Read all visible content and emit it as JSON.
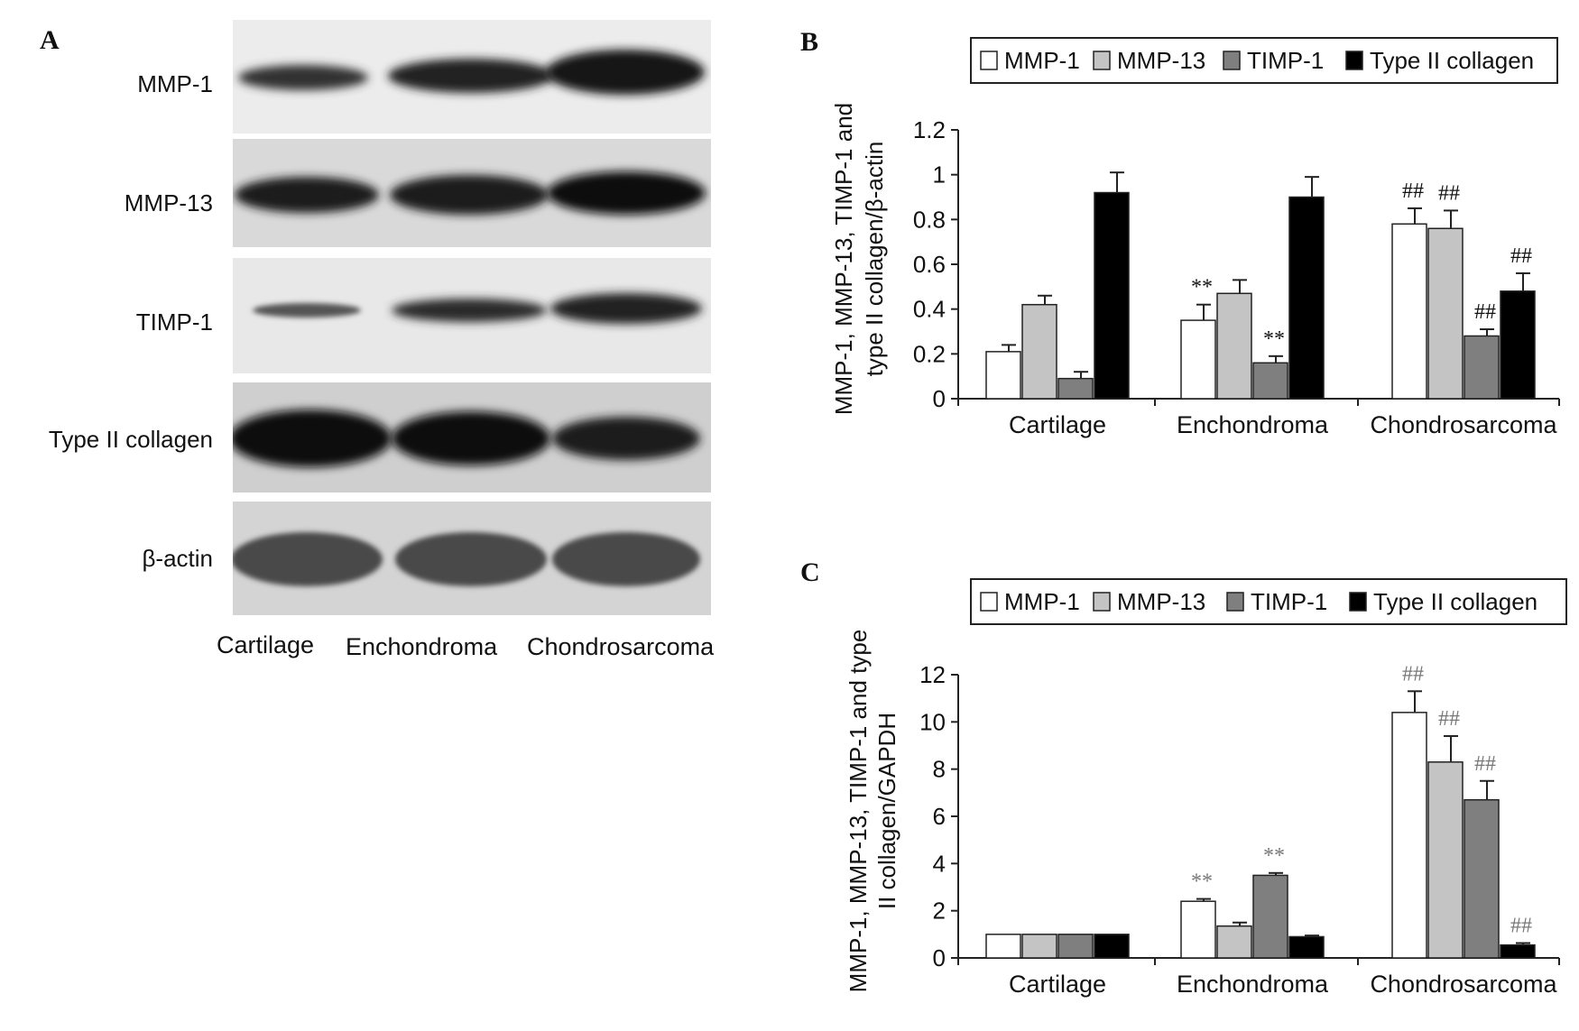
{
  "panels": {
    "a": "A",
    "b": "B",
    "c": "C"
  },
  "blot": {
    "rows": [
      "MMP-1",
      "MMP-13",
      "TIMP-1",
      "Type II collagen",
      "β-actin"
    ],
    "lanes": [
      "Cartilage",
      "Enchondroma",
      "Chondrosarcoma"
    ]
  },
  "colors": {
    "MMP-1": "#ffffff",
    "MMP-13": "#c4c4c4",
    "TIMP-1": "#7f7f7f",
    "Type II collagen": "#000000"
  },
  "chart_data": [
    {
      "type": "bar",
      "panel": "B",
      "categories": [
        "Cartilage",
        "Enchondroma",
        "Chondrosarcoma"
      ],
      "series": [
        {
          "name": "MMP-1",
          "values": [
            0.21,
            0.35,
            0.78
          ],
          "errors": [
            0.03,
            0.07,
            0.07
          ]
        },
        {
          "name": "MMP-13",
          "values": [
            0.42,
            0.47,
            0.76
          ],
          "errors": [
            0.04,
            0.06,
            0.08
          ]
        },
        {
          "name": "TIMP-1",
          "values": [
            0.09,
            0.16,
            0.28
          ],
          "errors": [
            0.03,
            0.03,
            0.03
          ]
        },
        {
          "name": "Type II collagen",
          "values": [
            0.92,
            0.9,
            0.48
          ],
          "errors": [
            0.09,
            0.09,
            0.08
          ]
        }
      ],
      "annotations": [
        {
          "category": "Enchondroma",
          "series": "MMP-1",
          "text": "**"
        },
        {
          "category": "Enchondroma",
          "series": "TIMP-1",
          "text": "**"
        },
        {
          "category": "Chondrosarcoma",
          "series": "MMP-1",
          "text": "##"
        },
        {
          "category": "Chondrosarcoma",
          "series": "MMP-13",
          "text": "##"
        },
        {
          "category": "Chondrosarcoma",
          "series": "TIMP-1",
          "text": "##"
        },
        {
          "category": "Chondrosarcoma",
          "series": "Type II collagen",
          "text": "##"
        }
      ],
      "ylabel_lines": [
        "MMP-1, MMP-13, TIMP-1 and",
        "type II collagen/β-actin"
      ],
      "xlabel": "",
      "ylim": [
        0,
        1.2
      ],
      "yticks": [
        "0",
        "0.2",
        "0.4",
        "0.6",
        "0.8",
        "1",
        "1.2"
      ],
      "ytick_values": [
        0,
        0.2,
        0.4,
        0.6,
        0.8,
        1,
        1.2
      ],
      "legend": "top",
      "grid": false
    },
    {
      "type": "bar",
      "panel": "C",
      "categories": [
        "Cartilage",
        "Enchondroma",
        "Chondrosarcoma"
      ],
      "series": [
        {
          "name": "MMP-1",
          "values": [
            1.0,
            2.4,
            10.4
          ],
          "errors": [
            0,
            0.1,
            0.9
          ]
        },
        {
          "name": "MMP-13",
          "values": [
            1.0,
            1.35,
            8.3
          ],
          "errors": [
            0,
            0.15,
            1.1
          ]
        },
        {
          "name": "TIMP-1",
          "values": [
            1.0,
            3.5,
            6.7
          ],
          "errors": [
            0,
            0.1,
            0.8
          ]
        },
        {
          "name": "Type II collagen",
          "values": [
            1.0,
            0.9,
            0.55
          ],
          "errors": [
            0,
            0.05,
            0.08
          ]
        }
      ],
      "annotations": [
        {
          "category": "Enchondroma",
          "series": "MMP-1",
          "text": "**"
        },
        {
          "category": "Enchondroma",
          "series": "TIMP-1",
          "text": "**"
        },
        {
          "category": "Chondrosarcoma",
          "series": "MMP-1",
          "text": "##"
        },
        {
          "category": "Chondrosarcoma",
          "series": "MMP-13",
          "text": "##"
        },
        {
          "category": "Chondrosarcoma",
          "series": "TIMP-1",
          "text": "##"
        },
        {
          "category": "Chondrosarcoma",
          "series": "Type II collagen",
          "text": "##"
        }
      ],
      "ylabel_lines": [
        "MMP-1, MMP-13, TIMP-1 and type",
        "II collagen/GAPDH"
      ],
      "xlabel": "",
      "ylim": [
        0,
        12
      ],
      "yticks": [
        "0",
        "2",
        "4",
        "6",
        "8",
        "10",
        "12"
      ],
      "ytick_values": [
        0,
        2,
        4,
        6,
        8,
        10,
        12
      ],
      "legend": "top",
      "grid": false
    }
  ]
}
